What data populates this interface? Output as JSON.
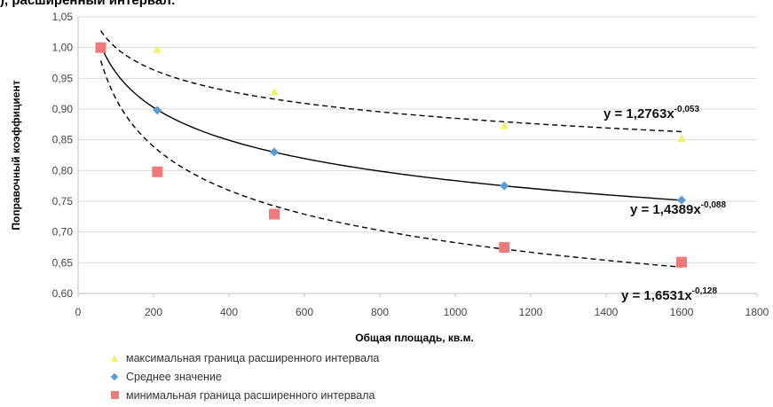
{
  "header": {
    "title_fragment": "), расширенный интервал:"
  },
  "chart_data": {
    "type": "scatter",
    "title": "",
    "xlabel": "Общая площадь, кв.м.",
    "ylabel": "Поправочный коэффициент",
    "xlim": [
      0,
      1800
    ],
    "ylim": [
      0.6,
      1.05
    ],
    "x_ticks": [
      "0",
      "200",
      "400",
      "600",
      "800",
      "1000",
      "1200",
      "1400",
      "1600",
      "1800"
    ],
    "y_ticks": [
      "0,60",
      "0,65",
      "0,70",
      "0,75",
      "0,80",
      "0,85",
      "0,90",
      "0,95",
      "1,00",
      "1,05"
    ],
    "grid": "horizontal",
    "legend_position": "bottom",
    "series": [
      {
        "name": "максимальная граница расширенного интервала",
        "marker": "triangle",
        "color": "#f2f26a",
        "x": [
          60,
          210,
          520,
          1130,
          1600
        ],
        "y": [
          1.0,
          0.997,
          0.928,
          0.873,
          0.852
        ]
      },
      {
        "name": "Среднее значение",
        "marker": "diamond",
        "color": "#5b9bd5",
        "x": [
          60,
          210,
          520,
          1130,
          1600
        ],
        "y": [
          1.0,
          0.898,
          0.83,
          0.775,
          0.752
        ]
      },
      {
        "name": "минимальная граница расширенного интервала",
        "marker": "square",
        "color": "#f07a7a",
        "x": [
          60,
          210,
          520,
          1130,
          1600
        ],
        "y": [
          1.0,
          0.798,
          0.729,
          0.675,
          0.651
        ]
      }
    ],
    "trendlines": [
      {
        "label_base": "y = 1,2763x",
        "label_exp": "-0,053",
        "a": 1.2763,
        "b": -0.053,
        "style": "dashed",
        "x_range": [
          60,
          1600
        ]
      },
      {
        "label_base": "y = 1,4389x",
        "label_exp": "-0,088",
        "a": 1.4389,
        "b": -0.088,
        "style": "solid",
        "x_range": [
          60,
          1600
        ]
      },
      {
        "label_base": "y = 1,6531x",
        "label_exp": "-0,128",
        "a": 1.6531,
        "b": -0.128,
        "style": "dashed",
        "x_range": [
          60,
          1600
        ]
      }
    ]
  }
}
